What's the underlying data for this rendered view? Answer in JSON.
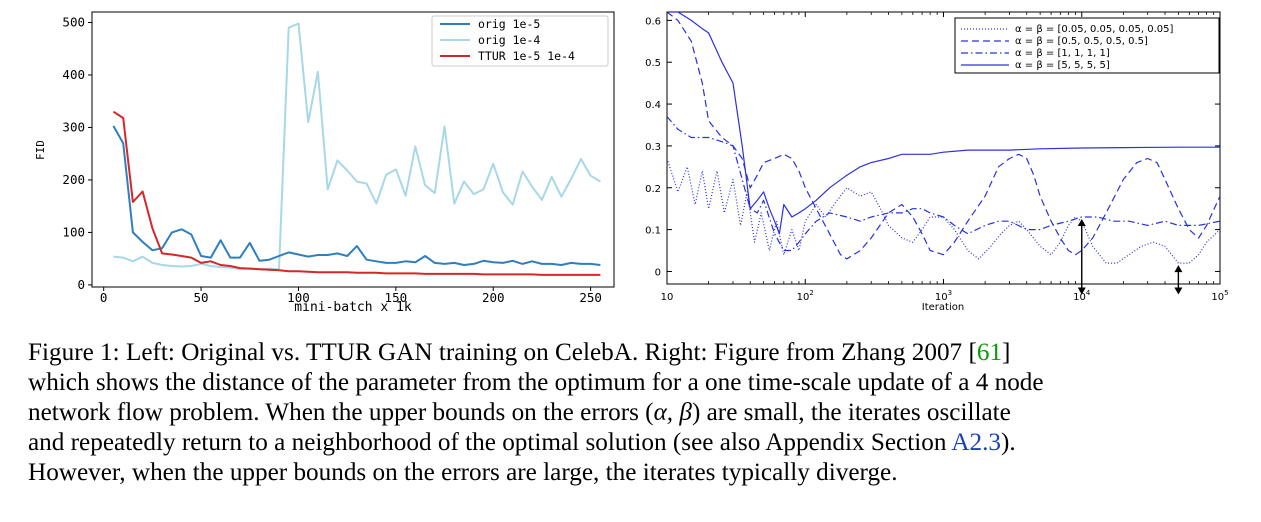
{
  "charts": [
    {
      "type": "line",
      "xlabel": "mini-batch x 1k",
      "ylabel": "FID",
      "xticks": [
        "0",
        "50",
        "100",
        "150",
        "200",
        "250"
      ],
      "yticks": [
        "0",
        "100",
        "200",
        "300",
        "400",
        "500"
      ],
      "xlim": [
        -6,
        262
      ],
      "ylim": [
        -4,
        520
      ],
      "grid": false,
      "legend_position": "top-right",
      "colors": {
        "orig_1e5": "#2f7fbf",
        "orig_1e4": "#a8d8e8",
        "ttur": "#d62728"
      },
      "series": [
        {
          "name": "orig 1e-5",
          "x": [
            5,
            10,
            15,
            20,
            25,
            30,
            35,
            40,
            45,
            50,
            55,
            60,
            65,
            70,
            75,
            80,
            85,
            90,
            95,
            100,
            105,
            110,
            115,
            120,
            125,
            130,
            135,
            140,
            145,
            150,
            155,
            160,
            165,
            170,
            175,
            180,
            185,
            190,
            195,
            200,
            205,
            210,
            215,
            220,
            225,
            230,
            235,
            240,
            245,
            250,
            255
          ],
          "y": [
            303,
            270,
            100,
            82,
            66,
            70,
            100,
            106,
            96,
            55,
            52,
            85,
            52,
            52,
            80,
            46,
            48,
            55,
            62,
            58,
            54,
            57,
            57,
            60,
            55,
            74,
            48,
            45,
            42,
            42,
            45,
            43,
            55,
            42,
            40,
            42,
            38,
            40,
            46,
            43,
            42,
            46,
            40,
            45,
            40,
            40,
            38,
            42,
            40,
            40,
            38
          ]
        },
        {
          "name": "orig 1e-4",
          "x": [
            5,
            10,
            15,
            20,
            25,
            30,
            35,
            40,
            45,
            50,
            55,
            60,
            65,
            70,
            75,
            80,
            85,
            90,
            95,
            100,
            105,
            110,
            115,
            120,
            125,
            130,
            135,
            140,
            145,
            150,
            155,
            160,
            165,
            170,
            175,
            180,
            185,
            190,
            195,
            200,
            205,
            210,
            215,
            220,
            225,
            230,
            235,
            240,
            245,
            250,
            255
          ],
          "y": [
            54,
            52,
            45,
            54,
            42,
            38,
            36,
            35,
            36,
            40,
            36,
            34,
            33,
            30,
            31,
            30,
            31,
            30,
            490,
            498,
            310,
            406,
            182,
            237,
            218,
            197,
            193,
            155,
            210,
            220,
            170,
            264,
            190,
            175,
            302,
            155,
            197,
            173,
            182,
            231,
            176,
            153,
            216,
            187,
            162,
            206,
            168,
            202,
            240,
            208,
            197
          ]
        },
        {
          "name": "TTUR 1e-5 1e-4",
          "x": [
            5,
            10,
            15,
            20,
            25,
            30,
            35,
            40,
            45,
            50,
            55,
            60,
            65,
            70,
            75,
            80,
            85,
            90,
            95,
            100,
            105,
            110,
            115,
            120,
            125,
            130,
            135,
            140,
            145,
            150,
            155,
            160,
            165,
            170,
            175,
            180,
            185,
            190,
            195,
            200,
            205,
            210,
            215,
            220,
            225,
            230,
            235,
            240,
            245,
            250,
            255
          ],
          "y": [
            330,
            318,
            158,
            178,
            108,
            60,
            58,
            55,
            52,
            42,
            45,
            38,
            36,
            32,
            31,
            30,
            29,
            28,
            26,
            26,
            25,
            24,
            24,
            24,
            24,
            23,
            23,
            23,
            22,
            22,
            22,
            22,
            21,
            21,
            21,
            21,
            21,
            21,
            20,
            20,
            20,
            20,
            20,
            20,
            19,
            19,
            19,
            19,
            19,
            19,
            19
          ]
        }
      ]
    },
    {
      "type": "line",
      "xlabel": "Iteration",
      "ylabel": "",
      "xscale": "log",
      "xlim": [
        10,
        100000
      ],
      "ylim": [
        -0.03,
        0.62
      ],
      "xticks": [
        "10",
        "10^2",
        "10^3",
        "10^4",
        "10^5"
      ],
      "yticks": [
        "0",
        "0.1",
        "0.2",
        "0.3",
        "0.4",
        "0.5",
        "0.6"
      ],
      "grid": false,
      "legend_position": "top-right",
      "color": "#2a30e0",
      "series": [
        {
          "name": "α = β = [0.05, 0.05, 0.05, 0.05]",
          "style": "dotted",
          "x": [
            10,
            12,
            14,
            16,
            18,
            20,
            23,
            26,
            30,
            34,
            38,
            43,
            48,
            55,
            62,
            70,
            80,
            90,
            100,
            120,
            140,
            170,
            200,
            250,
            300,
            350,
            400,
            500,
            600,
            700,
            800,
            1000,
            1200,
            1500,
            1800,
            2200,
            2600,
            3000,
            3500,
            4000,
            5000,
            6000,
            7000,
            8000,
            9000,
            10000,
            12000,
            15000,
            18000,
            22000,
            27000,
            33000,
            40000,
            50000,
            60000,
            70000,
            80000,
            100000
          ],
          "y": [
            0.27,
            0.19,
            0.25,
            0.16,
            0.24,
            0.15,
            0.24,
            0.14,
            0.22,
            0.11,
            0.19,
            0.07,
            0.14,
            0.05,
            0.12,
            0.04,
            0.1,
            0.05,
            0.12,
            0.16,
            0.13,
            0.17,
            0.2,
            0.18,
            0.19,
            0.15,
            0.11,
            0.08,
            0.07,
            0.1,
            0.13,
            0.13,
            0.1,
            0.05,
            0.03,
            0.06,
            0.09,
            0.11,
            0.12,
            0.1,
            0.06,
            0.04,
            0.07,
            0.11,
            0.13,
            0.12,
            0.06,
            0.02,
            0.02,
            0.04,
            0.06,
            0.07,
            0.06,
            0.02,
            0.02,
            0.04,
            0.07,
            0.1
          ]
        },
        {
          "name": "α = β = [0.5, 0.5, 0.5, 0.5]",
          "style": "dashed",
          "x": [
            10,
            12,
            15,
            18,
            20,
            25,
            30,
            35,
            40,
            45,
            50,
            60,
            70,
            80,
            90,
            100,
            120,
            150,
            180,
            200,
            250,
            300,
            400,
            500,
            600,
            700,
            800,
            1000,
            1200,
            1500,
            2000,
            2500,
            3000,
            3500,
            4000,
            4500,
            5000,
            6000,
            7000,
            8000,
            9000,
            10000,
            12000,
            15000,
            20000,
            25000,
            30000,
            35000,
            40000,
            50000,
            60000,
            70000,
            80000,
            100000
          ],
          "y": [
            0.62,
            0.6,
            0.55,
            0.45,
            0.36,
            0.32,
            0.3,
            0.27,
            0.2,
            0.23,
            0.26,
            0.27,
            0.28,
            0.27,
            0.24,
            0.2,
            0.15,
            0.09,
            0.04,
            0.03,
            0.05,
            0.08,
            0.14,
            0.16,
            0.13,
            0.09,
            0.05,
            0.04,
            0.07,
            0.12,
            0.18,
            0.25,
            0.27,
            0.28,
            0.27,
            0.23,
            0.18,
            0.12,
            0.08,
            0.05,
            0.04,
            0.05,
            0.08,
            0.14,
            0.22,
            0.26,
            0.27,
            0.26,
            0.22,
            0.15,
            0.1,
            0.08,
            0.11,
            0.18
          ]
        },
        {
          "name": "α = β = [1, 1, 1, 1]",
          "style": "dashdot",
          "x": [
            10,
            12,
            15,
            20,
            25,
            30,
            35,
            40,
            45,
            50,
            60,
            70,
            80,
            90,
            100,
            120,
            150,
            200,
            250,
            300,
            400,
            500,
            600,
            700,
            800,
            1000,
            1200,
            1500,
            2000,
            2500,
            3000,
            4000,
            5000,
            6000,
            8000,
            10000,
            13000,
            17000,
            22000,
            30000,
            40000,
            50000,
            70000,
            100000
          ],
          "y": [
            0.37,
            0.34,
            0.32,
            0.32,
            0.31,
            0.3,
            0.22,
            0.15,
            0.14,
            0.17,
            0.09,
            0.05,
            0.05,
            0.07,
            0.09,
            0.12,
            0.14,
            0.13,
            0.12,
            0.13,
            0.14,
            0.14,
            0.15,
            0.15,
            0.14,
            0.13,
            0.11,
            0.09,
            0.11,
            0.12,
            0.12,
            0.1,
            0.1,
            0.11,
            0.12,
            0.13,
            0.13,
            0.12,
            0.12,
            0.11,
            0.12,
            0.11,
            0.11,
            0.12
          ]
        },
        {
          "name": "α = β = [5, 5, 5, 5]",
          "style": "solid",
          "x": [
            10,
            12,
            15,
            18,
            20,
            25,
            30,
            35,
            40,
            45,
            50,
            55,
            60,
            65,
            70,
            80,
            90,
            100,
            120,
            150,
            200,
            250,
            300,
            400,
            500,
            600,
            800,
            1000,
            1500,
            2000,
            3000,
            5000,
            10000,
            20000,
            50000,
            100000
          ],
          "y": [
            0.62,
            0.62,
            0.6,
            0.58,
            0.57,
            0.5,
            0.45,
            0.3,
            0.15,
            0.17,
            0.19,
            0.15,
            0.12,
            0.09,
            0.16,
            0.13,
            0.14,
            0.15,
            0.17,
            0.2,
            0.23,
            0.25,
            0.26,
            0.27,
            0.28,
            0.28,
            0.28,
            0.285,
            0.29,
            0.29,
            0.29,
            0.293,
            0.295,
            0.296,
            0.297,
            0.297
          ]
        }
      ],
      "arrows": [
        {
          "x": 10000,
          "y_top": 0.13,
          "y_bottom": -0.06
        },
        {
          "x": 50000,
          "y_top": 0.02,
          "y_bottom": -0.06
        }
      ]
    }
  ],
  "caption": {
    "line1_a": "Figure 1: Left: Original vs. TTUR GAN training on CelebA. Right: Figure from Zhang 2007 [",
    "line1_ref": "61",
    "line1_b": "]",
    "line2": "which shows the distance of the parameter from the optimum for a one time-scale update of a 4 node",
    "line3_a": "network flow problem. When the upper bounds on the errors (",
    "line3_math": "α, β",
    "line3_b": ") are small, the iterates oscillate",
    "line4_a": "and repeatedly return to a neighborhood of the optimal solution (see also Appendix Section ",
    "line4_link": "A2.3",
    "line4_b": ").",
    "line5": "However, when the upper bounds on the errors are large, the iterates typically diverge."
  }
}
